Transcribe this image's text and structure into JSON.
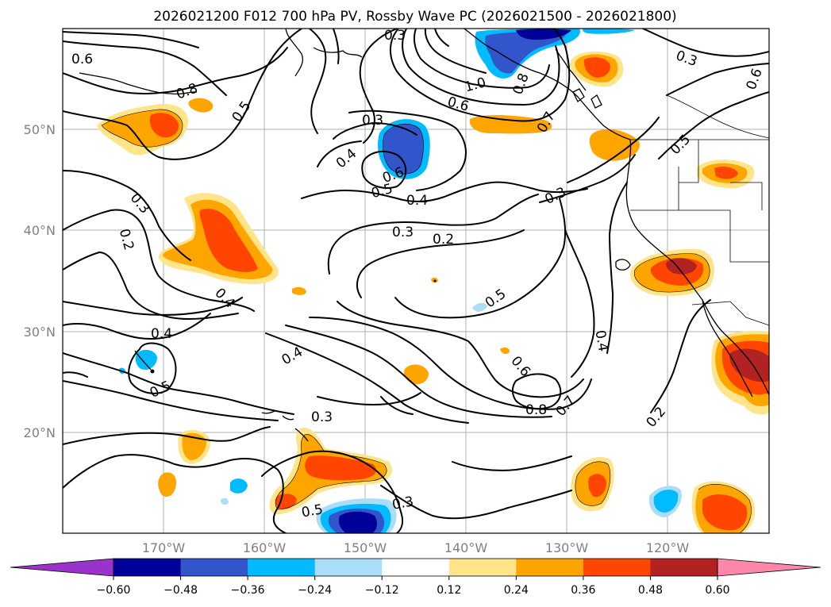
{
  "title": "2026021200 F012 700 hPa PV, Rossby Wave PC (2026021500 - 2026021800)",
  "axes": {
    "lon_labels": [
      "170°W",
      "160°W",
      "150°W",
      "140°W",
      "130°W",
      "120°W"
    ],
    "lat_labels": [
      "50°N",
      "40°N",
      "30°N",
      "20°N"
    ]
  },
  "colorbar": {
    "ticks": [
      "−0.60",
      "−0.48",
      "−0.36",
      "−0.24",
      "−0.12",
      "0.12",
      "0.24",
      "0.36",
      "0.48",
      "0.60"
    ],
    "colors": [
      "#9933cc",
      "#000099",
      "#3355cc",
      "#00bbff",
      "#aaddf7",
      "#ffffff",
      "#ffe48a",
      "#ffa500",
      "#ff4500",
      "#b22222",
      "#ff88aa"
    ]
  },
  "contour_labels": [
    "0.6",
    "0.8",
    "0.5",
    "0.3",
    "1.0",
    "0.6",
    "0.8",
    "0.7",
    "0.3",
    "0.6",
    "0.5",
    "0.4",
    "0.3",
    "0.6",
    "0.5",
    "0.4",
    "0.3",
    "0.2",
    "0.3",
    "0.2",
    "0.4",
    "0.5",
    "0.4",
    "0.4",
    "0.5",
    "0.4",
    "0.6",
    "0.8",
    "0.7",
    "0.3",
    "0.2",
    "0.3",
    "0.3",
    "0.5"
  ]
}
